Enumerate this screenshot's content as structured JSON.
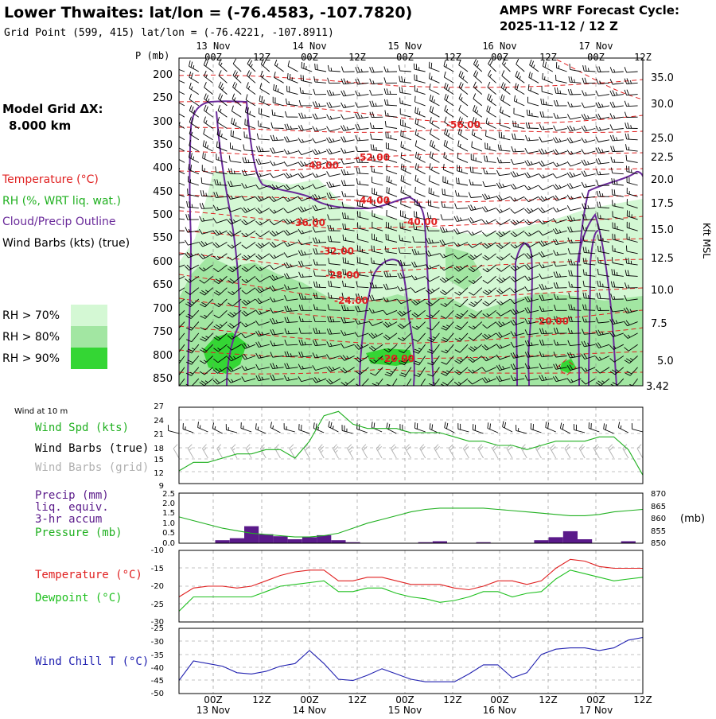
{
  "header": {
    "title": "Lower Thwaites:  lat/lon = (-76.4583, -107.7820)",
    "subtitle": "Grid Point (599, 415) lat/lon = (-76.4221, -107.8911)",
    "cycle_line1": "AMPS WRF Forecast Cycle:",
    "cycle_line2": "2025-11-12 / 12  Z"
  },
  "left_panel": {
    "model_grid_line1": "Model Grid ΔX:",
    "model_grid_line2": "8.000 km",
    "legend_temperature": "Temperature (°C)",
    "legend_rh": "RH (%, WRT liq. wat.)",
    "legend_cloud": "Cloud/Precip Outline",
    "legend_wind": "Wind Barbs (kts) (true)",
    "rh_boxes": [
      {
        "label": "RH > 70%",
        "color": "#d4f8d4"
      },
      {
        "label": "RH > 80%",
        "color": "#a2e6a2"
      },
      {
        "label": "RH > 90%",
        "color": "#34d634"
      }
    ]
  },
  "colors": {
    "temperature": "#e02020",
    "rh_label": "#20b020",
    "cloud": "#6a2a9a",
    "dewpoint": "#20c020",
    "windchill": "#2020b0",
    "precip": "#5a1a8a",
    "gray_barbs": "#b0b0b0"
  },
  "time_axis": {
    "top_dates": [
      "13 Nov",
      "14 Nov",
      "15 Nov",
      "16 Nov",
      "17 Nov"
    ],
    "hour_labels": [
      "00Z",
      "12Z",
      "00Z",
      "12Z",
      "00Z",
      "12Z",
      "00Z",
      "12Z",
      "00Z",
      "12Z"
    ],
    "bottom_dates": [
      "13 Nov",
      "14 Nov",
      "15 Nov",
      "16 Nov",
      "17 Nov"
    ]
  },
  "cross_section": {
    "p_axis_title": "P (mb)",
    "pressure_levels": [
      "200",
      "250",
      "300",
      "350",
      "400",
      "450",
      "500",
      "550",
      "600",
      "650",
      "700",
      "750",
      "800",
      "850"
    ],
    "height_labels": [
      "35.0",
      "30.0",
      "25.0",
      "22.5",
      "20.0",
      "17.5",
      "15.0",
      "12.5",
      "10.0",
      "7.5",
      "5.0",
      "3.42"
    ],
    "height_axis_title": "Kft MSL",
    "isotherm_labels": [
      "-56.00",
      "-52.00",
      "-48.00",
      "-44.00",
      "-40.00",
      "-36.00",
      "-32.00",
      "-28.00",
      "-24.00",
      "-20.00",
      "-20.00"
    ]
  },
  "wind_panel": {
    "header": "Wind at 10 m",
    "label_speed": "Wind Spd (kts)",
    "label_barbs_true": "Wind Barbs (true)",
    "label_barbs_grid": "Wind Barbs (grid)",
    "y_ticks": [
      "27",
      "24",
      "21",
      "18",
      "15",
      "12",
      "9"
    ]
  },
  "precip_panel": {
    "label_line1": "Precip (mm)",
    "label_line2": "liq. equiv.",
    "label_line3": "3-hr accum",
    "label_pressure": "Pressure (mb)",
    "left_ticks": [
      "2.5",
      "2.0",
      "1.5",
      "1.0",
      "0.5",
      "0.0"
    ],
    "right_ticks": [
      "870",
      "865",
      "860",
      "855",
      "850"
    ],
    "right_unit": "(mb)"
  },
  "temp_panel": {
    "label_temperature": "Temperature (°C)",
    "label_dewpoint": "Dewpoint (°C)",
    "y_ticks": [
      "-10",
      "-15",
      "-20",
      "-25",
      "-30"
    ]
  },
  "windchill_panel": {
    "label": "Wind Chill T (°C)",
    "y_ticks": [
      "-25",
      "-30",
      "-35",
      "-40",
      "-45",
      "-50"
    ]
  },
  "chart_data": [
    {
      "type": "line",
      "panel": "wind",
      "x_hours": [
        0,
        3,
        6,
        9,
        12,
        15,
        18,
        21,
        24,
        27,
        30,
        33,
        36,
        39,
        42,
        45,
        48,
        51,
        54,
        57,
        60,
        63,
        66,
        69,
        72,
        75,
        78,
        81,
        84,
        87,
        90,
        93,
        96
      ],
      "series": [
        {
          "name": "Wind Spd (kts)",
          "values": [
            12,
            14,
            14,
            15,
            16,
            16,
            17,
            17,
            15,
            19,
            25,
            26,
            23,
            22,
            22,
            22,
            21,
            21,
            21,
            20,
            19,
            19,
            18,
            18,
            17,
            18,
            19,
            19,
            19,
            20,
            20,
            17,
            11
          ]
        }
      ],
      "ylim": [
        9,
        27
      ]
    },
    {
      "type": "bar",
      "panel": "precip",
      "x_hours": [
        0,
        3,
        6,
        9,
        12,
        15,
        18,
        21,
        24,
        27,
        30,
        33,
        36,
        39,
        42,
        45,
        48,
        51,
        54,
        57,
        60,
        63,
        66,
        69,
        72,
        75,
        78,
        81,
        84,
        87,
        90,
        93,
        96
      ],
      "series": [
        {
          "name": "Precip (mm)",
          "values": [
            0,
            0,
            0,
            0.15,
            0.25,
            0.85,
            0.45,
            0.35,
            0.2,
            0.3,
            0.4,
            0.15,
            0.05,
            0,
            0,
            0,
            0,
            0.05,
            0.1,
            0,
            0,
            0.05,
            0,
            0,
            0,
            0.15,
            0.3,
            0.6,
            0.2,
            0,
            0,
            0.1,
            0
          ]
        }
      ],
      "ylim": [
        0,
        2.5
      ]
    },
    {
      "type": "line",
      "panel": "pressure",
      "x_hours": [
        0,
        3,
        6,
        9,
        12,
        15,
        18,
        21,
        24,
        27,
        30,
        33,
        36,
        39,
        42,
        45,
        48,
        51,
        54,
        57,
        60,
        63,
        66,
        69,
        72,
        75,
        78,
        81,
        84,
        87,
        90,
        93,
        96
      ],
      "series": [
        {
          "name": "Pressure (mb)",
          "values": [
            860.5,
            859,
            857.5,
            856,
            855,
            854,
            853.5,
            853,
            852.5,
            852.5,
            853,
            854,
            856,
            858,
            859.5,
            861,
            862.5,
            863.5,
            864,
            864,
            864,
            864,
            863.5,
            863,
            862.5,
            862,
            861.5,
            861,
            861,
            861.5,
            862.5,
            863,
            863.5
          ]
        }
      ],
      "ylim": [
        850,
        870
      ]
    },
    {
      "type": "line",
      "panel": "temperature",
      "x_hours": [
        0,
        3,
        6,
        9,
        12,
        15,
        18,
        21,
        24,
        27,
        30,
        33,
        36,
        39,
        42,
        45,
        48,
        51,
        54,
        57,
        60,
        63,
        66,
        69,
        72,
        75,
        78,
        81,
        84,
        87,
        90,
        93,
        96
      ],
      "series": [
        {
          "name": "Temperature (°C)",
          "values": [
            -23,
            -20.5,
            -20,
            -20,
            -20.5,
            -20,
            -18.5,
            -17,
            -16,
            -15.5,
            -15.5,
            -18.5,
            -18.5,
            -17.5,
            -17.5,
            -18.5,
            -19.5,
            -19.5,
            -19.5,
            -20.5,
            -21,
            -20,
            -18.5,
            -18.5,
            -19.5,
            -18.5,
            -15,
            -12.5,
            -13,
            -14.5,
            -15,
            -15,
            -15
          ]
        },
        {
          "name": "Dewpoint (°C)",
          "values": [
            -27,
            -23,
            -23,
            -23,
            -23,
            -23,
            -21.5,
            -20,
            -19.5,
            -19,
            -18.5,
            -21.5,
            -21.5,
            -20.5,
            -20.5,
            -22,
            -23,
            -23.5,
            -24.5,
            -24,
            -23,
            -21.5,
            -21.5,
            -23,
            -22,
            -21.5,
            -18,
            -15.5,
            -16.5,
            -17.5,
            -18.5,
            -18,
            -17.5
          ]
        }
      ],
      "ylim": [
        -30,
        -10
      ]
    },
    {
      "type": "line",
      "panel": "windchill",
      "x_hours": [
        0,
        3,
        6,
        9,
        12,
        15,
        18,
        21,
        24,
        27,
        30,
        33,
        36,
        39,
        42,
        45,
        48,
        51,
        54,
        57,
        60,
        63,
        66,
        69,
        72,
        75,
        78,
        81,
        84,
        87,
        90,
        93,
        96
      ],
      "series": [
        {
          "name": "Wind Chill T (°C)",
          "values": [
            -45,
            -37.5,
            -38.5,
            -39.5,
            -42,
            -42.5,
            -41.5,
            -39.5,
            -38.5,
            -33.5,
            -38.5,
            -44.5,
            -45,
            -43,
            -40.5,
            -42.5,
            -44.5,
            -45.5,
            -45.5,
            -45.5,
            -42.5,
            -39,
            -39,
            -44,
            -42,
            -35,
            -33,
            -32.5,
            -32.5,
            -33.5,
            -32.5,
            -29.5,
            -28.5
          ]
        }
      ],
      "ylim": [
        -50,
        -25
      ]
    }
  ]
}
